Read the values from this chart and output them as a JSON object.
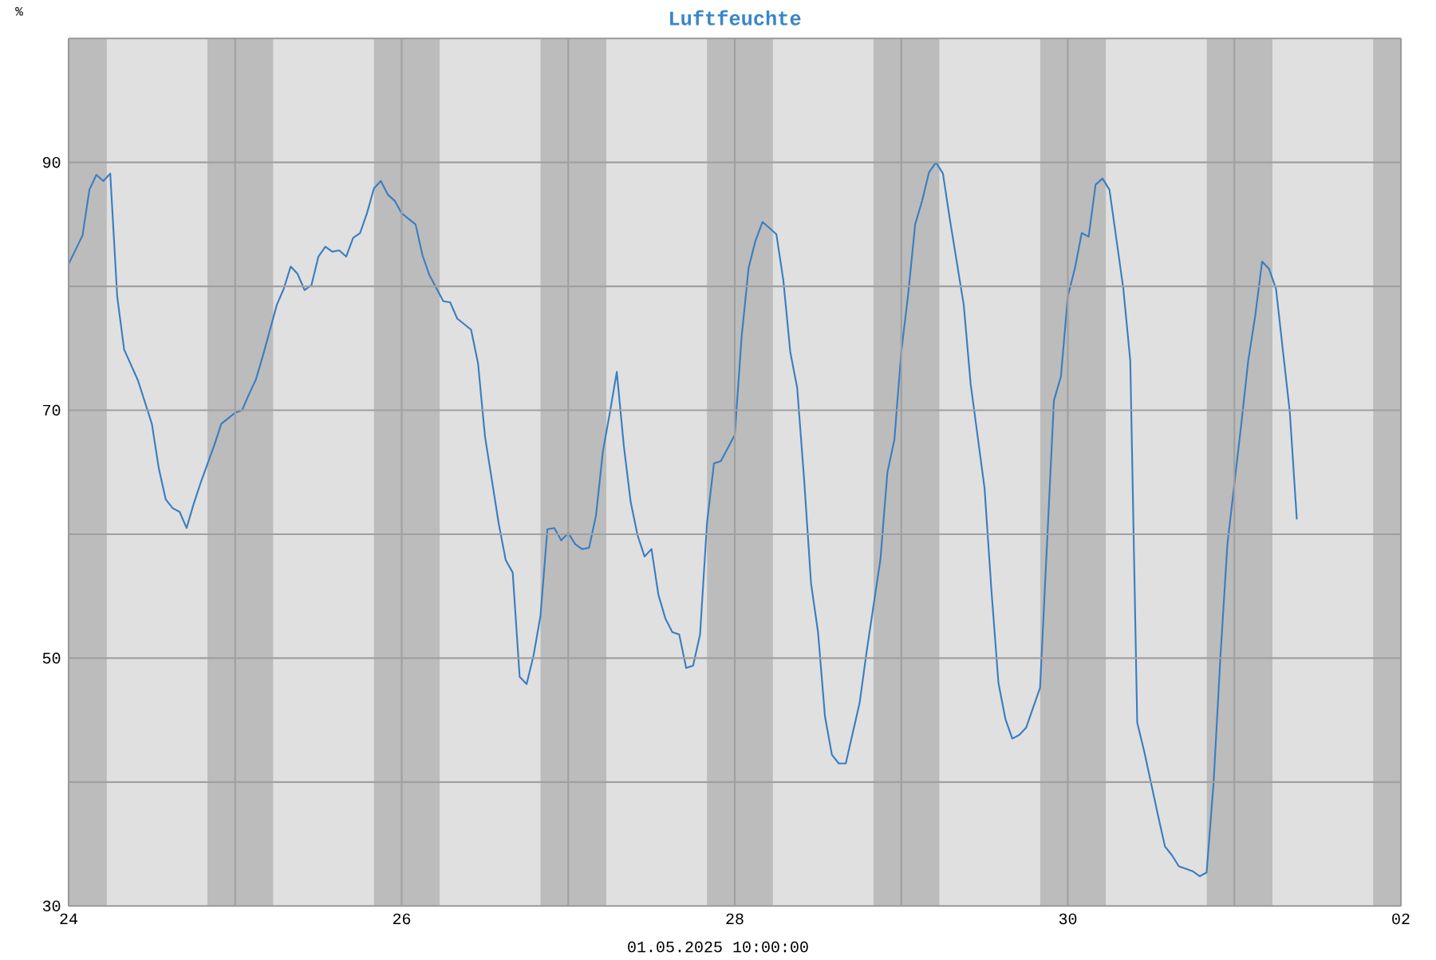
{
  "chart_data": {
    "type": "line",
    "title": "Luftfeuchte",
    "ylabel": "%",
    "annotations": [
      "01.05.2025 10:00:00"
    ],
    "x": [
      "2025-04-24T00:00",
      "2025-04-24T02:00",
      "2025-04-24T03:00",
      "2025-04-24T04:00",
      "2025-04-24T05:00",
      "2025-04-24T06:00",
      "2025-04-24T07:00",
      "2025-04-24T08:00",
      "2025-04-24T10:00",
      "2025-04-24T12:00",
      "2025-04-24T13:00",
      "2025-04-24T14:00",
      "2025-04-24T15:00",
      "2025-04-24T16:00",
      "2025-04-24T17:00",
      "2025-04-24T18:00",
      "2025-04-24T19:00",
      "2025-04-24T21:00",
      "2025-04-24T22:00",
      "2025-04-25T00:00",
      "2025-04-25T01:00",
      "2025-04-25T02:00",
      "2025-04-25T03:00",
      "2025-04-25T04:00",
      "2025-04-25T06:00",
      "2025-04-25T07:00",
      "2025-04-25T08:00",
      "2025-04-25T09:00",
      "2025-04-25T10:00",
      "2025-04-25T11:00",
      "2025-04-25T12:00",
      "2025-04-25T13:00",
      "2025-04-25T14:00",
      "2025-04-25T15:00",
      "2025-04-25T16:00",
      "2025-04-25T17:00",
      "2025-04-25T18:00",
      "2025-04-25T19:00",
      "2025-04-25T20:00",
      "2025-04-25T21:00",
      "2025-04-25T22:00",
      "2025-04-25T23:00",
      "2025-04-26T00:00",
      "2025-04-26T02:00",
      "2025-04-26T03:00",
      "2025-04-26T04:00",
      "2025-04-26T06:00",
      "2025-04-26T07:00",
      "2025-04-26T08:00",
      "2025-04-26T10:00",
      "2025-04-26T11:00",
      "2025-04-26T12:00",
      "2025-04-26T14:00",
      "2025-04-26T15:00",
      "2025-04-26T16:00",
      "2025-04-26T17:00",
      "2025-04-26T18:00",
      "2025-04-26T19:00",
      "2025-04-26T20:00",
      "2025-04-26T21:00",
      "2025-04-26T22:00",
      "2025-04-26T23:00",
      "2025-04-27T00:00",
      "2025-04-27T01:00",
      "2025-04-27T02:00",
      "2025-04-27T03:00",
      "2025-04-27T04:00",
      "2025-04-27T05:00",
      "2025-04-27T06:00",
      "2025-04-27T07:00",
      "2025-04-27T08:00",
      "2025-04-27T09:00",
      "2025-04-27T10:00",
      "2025-04-27T11:00",
      "2025-04-27T12:00",
      "2025-04-27T13:00",
      "2025-04-27T14:00",
      "2025-04-27T15:00",
      "2025-04-27T16:00",
      "2025-04-27T17:00",
      "2025-04-27T18:00",
      "2025-04-27T19:00",
      "2025-04-27T20:00",
      "2025-04-27T21:00",
      "2025-04-27T22:00",
      "2025-04-28T00:00",
      "2025-04-28T01:00",
      "2025-04-28T02:00",
      "2025-04-28T03:00",
      "2025-04-28T04:00",
      "2025-04-28T06:00",
      "2025-04-28T07:00",
      "2025-04-28T08:00",
      "2025-04-28T09:00",
      "2025-04-28T10:00",
      "2025-04-28T11:00",
      "2025-04-28T12:00",
      "2025-04-28T13:00",
      "2025-04-28T14:00",
      "2025-04-28T15:00",
      "2025-04-28T16:00",
      "2025-04-28T18:00",
      "2025-04-28T19:00",
      "2025-04-28T21:00",
      "2025-04-28T22:00",
      "2025-04-28T23:00",
      "2025-04-29T00:00",
      "2025-04-29T01:00",
      "2025-04-29T02:00",
      "2025-04-29T03:00",
      "2025-04-29T04:00",
      "2025-04-29T05:00",
      "2025-04-29T06:00",
      "2025-04-29T07:00",
      "2025-04-29T09:00",
      "2025-04-29T10:00",
      "2025-04-29T11:00",
      "2025-04-29T12:00",
      "2025-04-29T13:00",
      "2025-04-29T14:00",
      "2025-04-29T15:00",
      "2025-04-29T16:00",
      "2025-04-29T17:00",
      "2025-04-29T18:00",
      "2025-04-29T20:00",
      "2025-04-29T21:00",
      "2025-04-29T22:00",
      "2025-04-29T23:00",
      "2025-04-30T00:00",
      "2025-04-30T01:00",
      "2025-04-30T02:00",
      "2025-04-30T03:00",
      "2025-04-30T04:00",
      "2025-04-30T05:00",
      "2025-04-30T06:00",
      "2025-04-30T08:00",
      "2025-04-30T09:00",
      "2025-04-30T10:00",
      "2025-04-30T11:00",
      "2025-04-30T13:00",
      "2025-04-30T14:00",
      "2025-04-30T15:00",
      "2025-04-30T16:00",
      "2025-04-30T17:00",
      "2025-04-30T18:00",
      "2025-04-30T19:00",
      "2025-04-30T20:00",
      "2025-04-30T21:00",
      "2025-04-30T22:00",
      "2025-04-30T23:00",
      "2025-05-01T01:00",
      "2025-05-01T02:00",
      "2025-05-01T03:00",
      "2025-05-01T04:00",
      "2025-05-01T05:00",
      "2025-05-01T06:00",
      "2025-05-01T08:00",
      "2025-05-01T09:00"
    ],
    "values": [
      81.8,
      84.1,
      87.8,
      89.0,
      88.5,
      89.1,
      79.2,
      74.9,
      72.4,
      68.9,
      65.3,
      62.8,
      62.1,
      61.8,
      60.5,
      62.4,
      64.1,
      67.2,
      68.9,
      69.8,
      70.0,
      71.3,
      72.5,
      74.4,
      78.5,
      79.8,
      81.6,
      81.0,
      79.7,
      80.1,
      82.4,
      83.2,
      82.8,
      82.9,
      82.4,
      83.9,
      84.3,
      85.9,
      87.9,
      88.5,
      87.4,
      86.9,
      85.9,
      85.0,
      82.5,
      80.9,
      78.8,
      78.7,
      77.4,
      76.5,
      73.8,
      67.9,
      60.8,
      57.9,
      56.9,
      48.5,
      47.9,
      50.2,
      53.4,
      60.4,
      60.5,
      59.5,
      60.1,
      59.2,
      58.8,
      58.9,
      61.5,
      66.7,
      69.8,
      73.1,
      67.2,
      62.6,
      59.9,
      58.2,
      58.8,
      55.1,
      53.2,
      52.1,
      51.9,
      49.2,
      49.4,
      51.9,
      60.9,
      65.7,
      65.9,
      68.0,
      76.0,
      81.5,
      83.7,
      85.2,
      84.2,
      80.5,
      74.7,
      71.8,
      64.4,
      56.0,
      52.1,
      45.3,
      42.2,
      41.5,
      41.5,
      46.4,
      50.5,
      58.0,
      65.0,
      67.6,
      74.7,
      79.4,
      85.0,
      86.9,
      89.2,
      90.0,
      89.1,
      85.4,
      78.5,
      72.1,
      67.9,
      63.7,
      55.4,
      48.0,
      45.1,
      43.5,
      43.8,
      44.4,
      47.6,
      59.2,
      70.8,
      72.7,
      79.2,
      81.4,
      84.3,
      84.0,
      88.2,
      88.7,
      87.8,
      79.8,
      74.0,
      44.8,
      42.5,
      37.3,
      34.8,
      34.1,
      33.2,
      33.0,
      32.8,
      32.4,
      32.7,
      39.9,
      50.2,
      59.2,
      68.9,
      74.0,
      77.6,
      82.0,
      81.4,
      79.8,
      69.8,
      61.2
    ],
    "color": "#3a7ebf",
    "line_style": "solid",
    "marker": "none",
    "grid": true,
    "xlim": [
      "2025-04-24",
      "2025-05-02"
    ],
    "xticks": [
      {
        "value": "2025-04-24",
        "label": "24"
      },
      {
        "value": "2025-04-25",
        "label": null
      },
      {
        "value": "2025-04-26",
        "label": "26"
      },
      {
        "value": "2025-04-27",
        "label": null
      },
      {
        "value": "2025-04-28",
        "label": "28"
      },
      {
        "value": "2025-04-29",
        "label": null
      },
      {
        "value": "2025-04-30",
        "label": "30"
      },
      {
        "value": "2025-05-01",
        "label": null
      },
      {
        "value": "2025-05-02",
        "label": "02"
      }
    ],
    "ylim": [
      30,
      100
    ],
    "yticks": [
      30,
      {
        "value": 40,
        "label": null
      },
      50,
      {
        "value": 60,
        "label": null
      },
      70,
      {
        "value": 80,
        "label": null
      },
      90,
      {
        "value": 100,
        "label": null
      }
    ],
    "bands": [
      {
        "axis": "x",
        "from": "2025-04-24T00:00",
        "to": "2025-04-24T05:30",
        "color": "#bcbcbc"
      },
      {
        "axis": "x",
        "from": "2025-04-24T20:00",
        "to": "2025-04-25T05:30",
        "color": "#bcbcbc"
      },
      {
        "axis": "x",
        "from": "2025-04-25T20:00",
        "to": "2025-04-26T05:30",
        "color": "#bcbcbc"
      },
      {
        "axis": "x",
        "from": "2025-04-26T20:00",
        "to": "2025-04-27T05:30",
        "color": "#bcbcbc"
      },
      {
        "axis": "x",
        "from": "2025-04-27T20:00",
        "to": "2025-04-28T05:30",
        "color": "#bcbcbc"
      },
      {
        "axis": "x",
        "from": "2025-04-28T20:00",
        "to": "2025-04-29T05:30",
        "color": "#bcbcbc"
      },
      {
        "axis": "x",
        "from": "2025-04-29T20:00",
        "to": "2025-04-30T05:30",
        "color": "#bcbcbc"
      },
      {
        "axis": "x",
        "from": "2025-04-30T20:00",
        "to": "2025-05-01T05:30",
        "color": "#bcbcbc"
      },
      {
        "axis": "x",
        "from": "2025-05-01T20:00",
        "to": "2025-05-02T00:00",
        "color": "#bcbcbc"
      }
    ]
  }
}
